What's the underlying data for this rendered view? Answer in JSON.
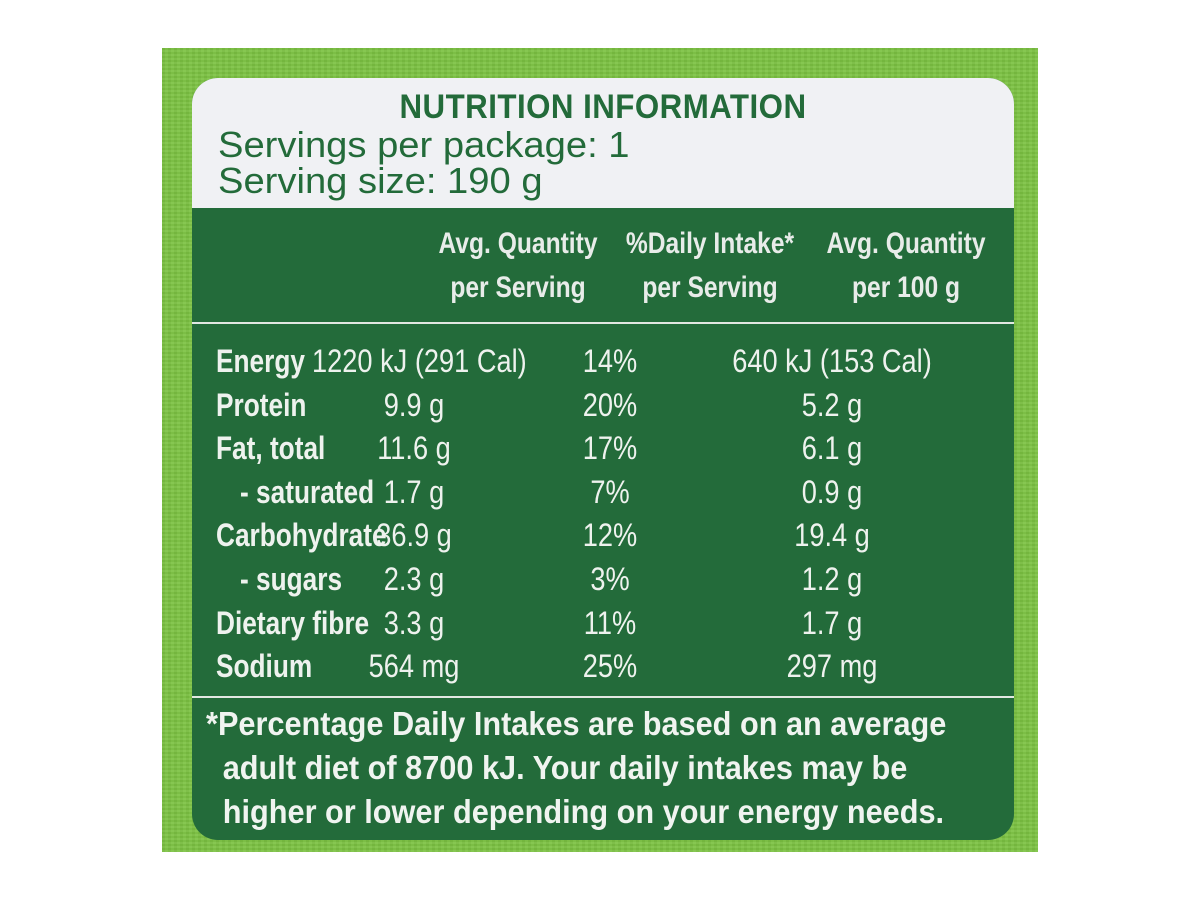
{
  "label": {
    "title": "NUTRITION INFORMATION",
    "servings_per_package": "Servings per package: 1",
    "serving_size": "Serving size: 190 g",
    "columns": [
      {
        "line1": "Avg. Quantity",
        "line2": "per Serving"
      },
      {
        "line1": "%Daily Intake*",
        "line2": "per Serving"
      },
      {
        "line1": "Avg. Quantity",
        "line2": "per 100 g"
      }
    ],
    "rows": [
      {
        "name": "Energy",
        "per_serving": "1220 kJ (291 Cal)",
        "daily_intake": "14%",
        "per_100g": "640 kJ (153 Cal)",
        "indent": false
      },
      {
        "name": "Protein",
        "per_serving": "9.9 g",
        "daily_intake": "20%",
        "per_100g": "5.2 g",
        "indent": false
      },
      {
        "name": "Fat, total",
        "per_serving": "11.6 g",
        "daily_intake": "17%",
        "per_100g": "6.1 g",
        "indent": false
      },
      {
        "name": "- saturated",
        "per_serving": "1.7 g",
        "daily_intake": "7%",
        "per_100g": "0.9 g",
        "indent": true
      },
      {
        "name": "Carbohydrate",
        "per_serving": "36.9 g",
        "daily_intake": "12%",
        "per_100g": "19.4 g",
        "indent": false
      },
      {
        "name": "- sugars",
        "per_serving": "2.3 g",
        "daily_intake": "3%",
        "per_100g": "1.2 g",
        "indent": true
      },
      {
        "name": "Dietary fibre",
        "per_serving": "3.3 g",
        "daily_intake": "11%",
        "per_100g": "1.7 g",
        "indent": false
      },
      {
        "name": "Sodium",
        "per_serving": "564 mg",
        "daily_intake": "25%",
        "per_100g": "297 mg",
        "indent": false
      }
    ],
    "footnote": {
      "line1": "*Percentage Daily Intakes are based on an average",
      "line2": "adult diet of 8700 kJ. Your daily intakes may be",
      "line3": "higher or lower depending on your energy needs."
    }
  },
  "colors": {
    "package_green": "#7cc242",
    "panel_green": "#236b3a",
    "header_bg": "#f0f1f4",
    "text_light": "#eef2ee"
  }
}
